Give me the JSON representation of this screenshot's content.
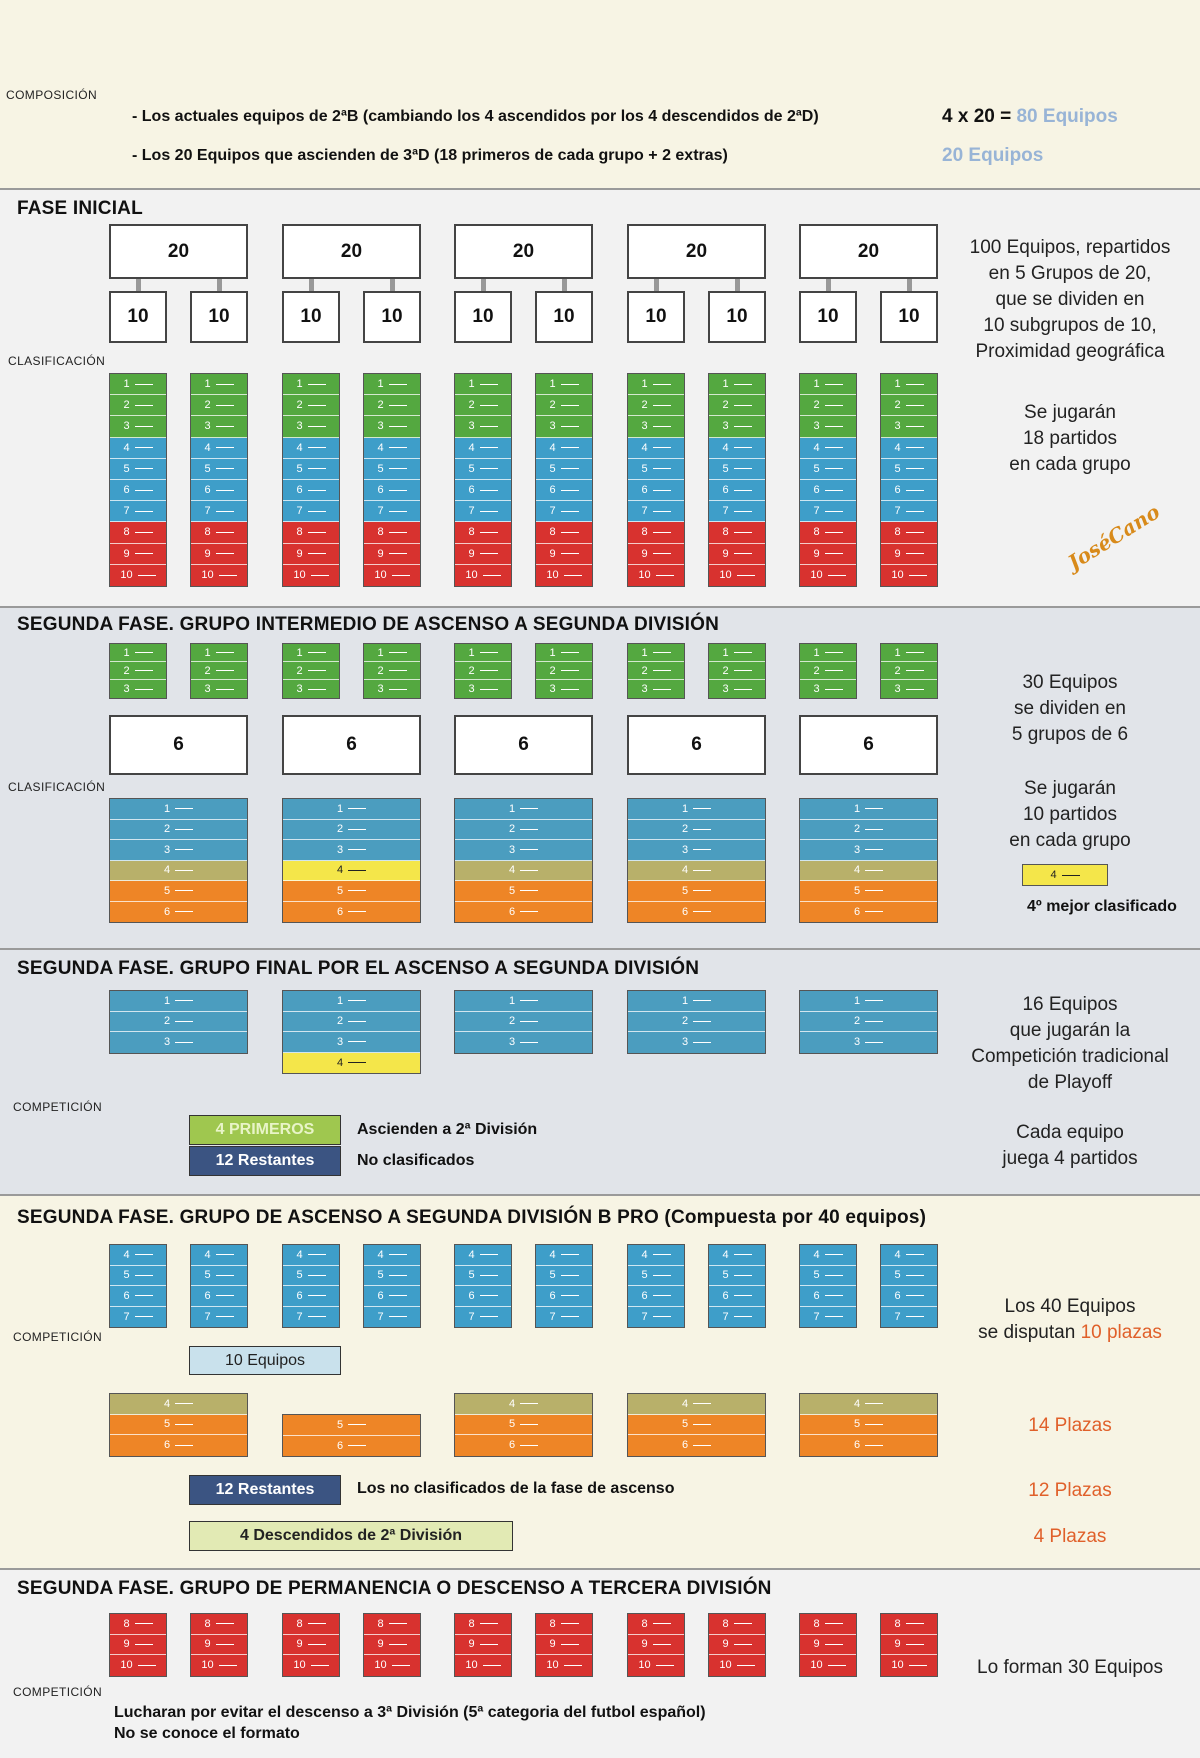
{
  "composicion": {
    "label": "COMPOSICIÓN",
    "line1": "- Los actuales equipos de 2ªB (cambiando los 4 ascendidos por los 4 descendidos de 2ªD)",
    "line1_result_prefix": "4 x 20 = ",
    "line1_result_value": "80 Equipos",
    "line2": "- Los 20 Equipos que ascienden de 3ªD (18 primeros de cada grupo + 2 extras)",
    "line2_result": "20 Equipos"
  },
  "fase_inicial": {
    "title": "FASE INICIAL",
    "clasificacion_label": "CLASIFICACIÓN",
    "group_size": "20",
    "subgroup_size": "10",
    "ranks": [
      "1",
      "2",
      "3",
      "4",
      "5",
      "6",
      "7",
      "8",
      "9",
      "10"
    ],
    "description": [
      "100 Equipos, repartidos",
      "en 5 Grupos de 20,",
      "que se dividen en",
      "10 subgrupos de 10,",
      "Proximidad geográfica"
    ],
    "matches": [
      "Se jugarán",
      "18 partidos",
      "en cada grupo"
    ],
    "watermark": "JoséCano"
  },
  "grupo_intermedio": {
    "title": "SEGUNDA FASE. GRUPO INTERMEDIO DE ASCENSO A SEGUNDA DIVISIÓN",
    "clasificacion_label": "CLASIFICACIÓN",
    "top_ranks": [
      "1",
      "2",
      "3"
    ],
    "group_size": "6",
    "ranks": [
      "1",
      "2",
      "3",
      "4",
      "5",
      "6"
    ],
    "description": [
      "30 Equipos",
      "se dividen en",
      "5 grupos de 6"
    ],
    "matches": [
      "Se jugarán",
      "10 partidos",
      "en cada grupo"
    ],
    "legend_rank": "4",
    "legend_text": "4º mejor clasificado"
  },
  "grupo_final": {
    "title": "SEGUNDA FASE. GRUPO FINAL POR EL ASCENSO A SEGUNDA DIVISIÓN",
    "competicion_label": "COMPETICIÓN",
    "ranks": [
      "1",
      "2",
      "3"
    ],
    "extra_rank": "4",
    "badge_primeros": "4 PRIMEROS",
    "badge_primeros_text": "Ascienden a 2ª División",
    "badge_restantes": "12 Restantes",
    "badge_restantes_text": "No clasificados",
    "description": [
      "16 Equipos",
      "que jugarán la",
      "Competición tradicional",
      "de Playoff"
    ],
    "matches": [
      "Cada equipo",
      "juega 4 partidos"
    ]
  },
  "grupo_b_pro": {
    "title": "SEGUNDA FASE. GRUPO DE ASCENSO A SEGUNDA DIVISIÓN B PRO (Compuesta por 40 equipos)",
    "competicion_label": "COMPETICIÓN",
    "small_ranks": [
      "4",
      "5",
      "6",
      "7"
    ],
    "box_10": "10 Equipos",
    "desc_line1": "Los 40 Equipos",
    "desc_line2_prefix": "se disputan ",
    "desc_line2_value": "10 plazas",
    "wide_ranks": [
      "4",
      "5",
      "6"
    ],
    "wide_ranks_short": [
      "5",
      "6"
    ],
    "plazas_14": "14 Plazas",
    "badge_restantes": "12 Restantes",
    "badge_restantes_text": "Los no clasificados de la fase de ascenso",
    "plazas_12": "12 Plazas",
    "box_descendidos": "4 Descendidos de 2ª División",
    "plazas_4": "4 Plazas"
  },
  "grupo_permanencia": {
    "title": "SEGUNDA FASE. GRUPO DE PERMANENCIA O DESCENSO A TERCERA DIVISIÓN",
    "competicion_label": "COMPETICIÓN",
    "ranks": [
      "8",
      "9",
      "10"
    ],
    "description": "Lo forman 30 Equipos",
    "footer_line1": "Lucharan por evitar el descenso a 3ª División (5ª categoria del futbol español)",
    "footer_line2": "No se conoce el formato"
  },
  "colors": {
    "green": "#54a840",
    "blue": "#3e9ec9",
    "red": "#d8322f",
    "teal": "#4b9dbf",
    "khaki": "#b8b06a",
    "yellow": "#f4e64a",
    "orange": "#ee8526",
    "accent_blue": "#98b4d6",
    "accent_orange": "#e0602a"
  }
}
